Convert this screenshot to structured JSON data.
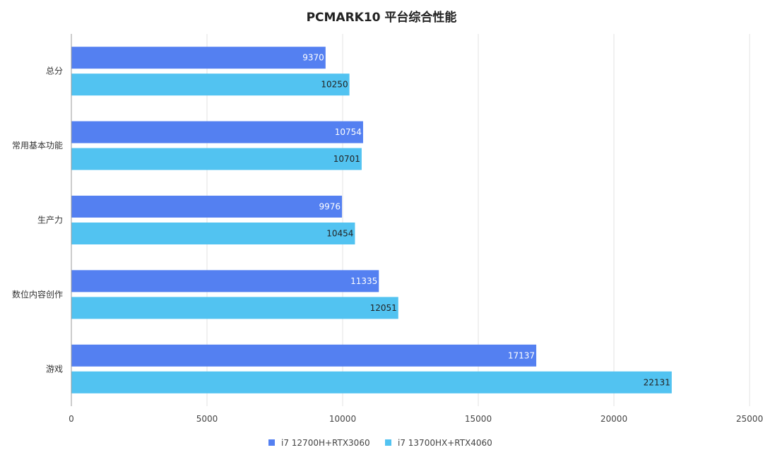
{
  "chart_data": {
    "type": "bar",
    "orientation": "horizontal",
    "title": "PCMARK10 平台综合性能",
    "categories": [
      "总分",
      "常用基本功能",
      "生产力",
      "数位内容创作",
      "游戏"
    ],
    "series": [
      {
        "name": "i7 12700H+RTX3060",
        "color": "#5480f1",
        "label_color": "#ffffff",
        "values": [
          9370,
          10754,
          9976,
          11335,
          17137
        ]
      },
      {
        "name": "i7 13700HX+RTX4060",
        "color": "#52c3f1",
        "label_color": "#222222",
        "values": [
          10250,
          10701,
          10454,
          12051,
          22131
        ]
      }
    ],
    "xlim": [
      0,
      25000
    ],
    "xticks": [
      0,
      5000,
      10000,
      15000,
      20000,
      25000
    ],
    "grid": true,
    "legend_position": "bottom"
  }
}
